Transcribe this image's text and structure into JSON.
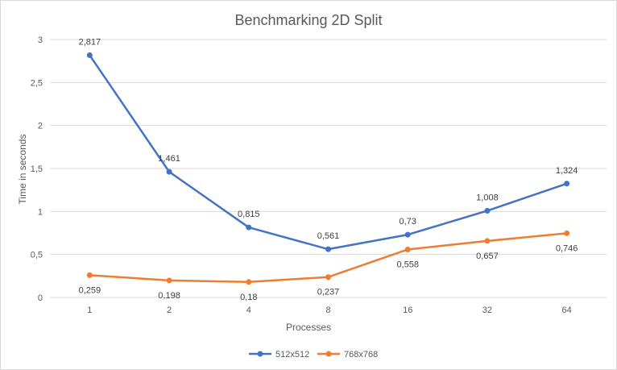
{
  "chart_data": {
    "type": "line",
    "title": "Benchmarking 2D Split",
    "xlabel": "Processes",
    "ylabel": "Time in seconds",
    "categories": [
      "1",
      "2",
      "4",
      "8",
      "16",
      "32",
      "64"
    ],
    "y_ticks": [
      "0",
      "0,5",
      "1",
      "1,5",
      "2",
      "2,5",
      "3"
    ],
    "ylim": [
      0,
      3
    ],
    "grid": true,
    "legend_position": "bottom",
    "series": [
      {
        "name": "512x512",
        "color": "#4472c4",
        "values": [
          2.817,
          1.461,
          0.815,
          0.561,
          0.73,
          1.008,
          1.324
        ],
        "labels": [
          "2,817",
          "1,461",
          "0,815",
          "0,561",
          "0,73",
          "1,008",
          "1,324"
        ],
        "label_position": "above"
      },
      {
        "name": "768x768",
        "color": "#ed7d31",
        "values": [
          0.259,
          0.198,
          0.18,
          0.237,
          0.558,
          0.657,
          0.746
        ],
        "labels": [
          "0,259",
          "0,198",
          "0,18",
          "0,237",
          "0,558",
          "0,657",
          "0,746"
        ],
        "label_position": "below"
      }
    ]
  }
}
